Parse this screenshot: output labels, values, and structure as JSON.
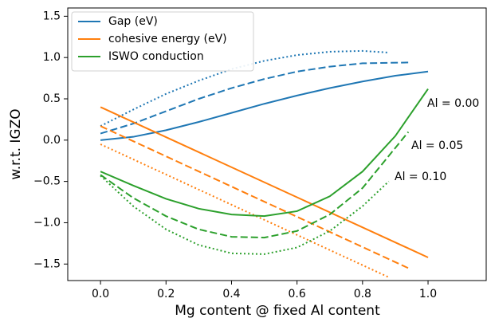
{
  "chart_data": {
    "type": "line",
    "xlabel": "Mg content @ fixed Al content",
    "ylabel": "w.r.t. IGZO",
    "xlim": [
      -0.1,
      1.18
    ],
    "ylim": [
      -1.7,
      1.6
    ],
    "xticks": [
      {
        "value": 0,
        "label": "0.0"
      },
      {
        "value": 0.2,
        "label": "0.2"
      },
      {
        "value": 0.4,
        "label": "0.4"
      },
      {
        "value": 0.6,
        "label": "0.6"
      },
      {
        "value": 0.8,
        "label": "0.8"
      },
      {
        "value": 1.0,
        "label": "1.0"
      }
    ],
    "yticks": [
      {
        "value": -1.5,
        "label": "−1.5"
      },
      {
        "value": -1.0,
        "label": "−1.0"
      },
      {
        "value": -0.5,
        "label": "−0.5"
      },
      {
        "value": 0,
        "label": "0.0"
      },
      {
        "value": 0.5,
        "label": "0.5"
      },
      {
        "value": 1.0,
        "label": "1.0"
      },
      {
        "value": 1.5,
        "label": "1.5"
      }
    ],
    "legend": "upper left",
    "annotations": [
      "Al = 0.00",
      "Al = 0.05",
      "Al = 0.10"
    ],
    "series": [
      {
        "name": "Gap (eV)",
        "color": "#1f77b4",
        "dash": "solid",
        "x": [
          0,
          0.1,
          0.2,
          0.3,
          0.4,
          0.5,
          0.6,
          0.7,
          0.8,
          0.9,
          1.0
        ],
        "values": [
          0.0,
          0.04,
          0.12,
          0.22,
          0.33,
          0.44,
          0.54,
          0.63,
          0.71,
          0.78,
          0.83
        ]
      },
      {
        "color": "#1f77b4",
        "dash": "dashed",
        "x": [
          0,
          0.1,
          0.2,
          0.3,
          0.4,
          0.5,
          0.6,
          0.7,
          0.8,
          0.94
        ],
        "values": [
          0.08,
          0.2,
          0.35,
          0.5,
          0.63,
          0.74,
          0.83,
          0.89,
          0.93,
          0.94
        ]
      },
      {
        "color": "#1f77b4",
        "dash": "dotted",
        "x": [
          0,
          0.1,
          0.2,
          0.3,
          0.4,
          0.5,
          0.6,
          0.7,
          0.8,
          0.88
        ],
        "values": [
          0.17,
          0.37,
          0.56,
          0.72,
          0.86,
          0.96,
          1.03,
          1.07,
          1.08,
          1.06
        ]
      },
      {
        "name": "cohesive energy (eV)",
        "color": "#ff7f0e",
        "dash": "solid",
        "x": [
          0,
          1.0
        ],
        "values": [
          0.4,
          -1.42
        ]
      },
      {
        "color": "#ff7f0e",
        "dash": "dashed",
        "x": [
          0,
          0.94
        ],
        "values": [
          0.17,
          -1.55
        ]
      },
      {
        "color": "#ff7f0e",
        "dash": "dotted",
        "x": [
          0,
          0.88
        ],
        "values": [
          -0.05,
          -1.66
        ]
      },
      {
        "name": "ISWO conduction",
        "color": "#2ca02c",
        "dash": "solid",
        "x": [
          0,
          0.1,
          0.2,
          0.3,
          0.4,
          0.5,
          0.6,
          0.7,
          0.8,
          0.9,
          1.0
        ],
        "values": [
          -0.38,
          -0.55,
          -0.71,
          -0.83,
          -0.9,
          -0.92,
          -0.86,
          -0.68,
          -0.38,
          0.05,
          0.62
        ]
      },
      {
        "color": "#2ca02c",
        "dash": "dashed",
        "x": [
          0,
          0.1,
          0.2,
          0.3,
          0.4,
          0.5,
          0.6,
          0.7,
          0.8,
          0.94
        ],
        "values": [
          -0.42,
          -0.7,
          -0.92,
          -1.08,
          -1.17,
          -1.18,
          -1.1,
          -0.9,
          -0.58,
          0.1
        ]
      },
      {
        "color": "#2ca02c",
        "dash": "dotted",
        "x": [
          0,
          0.1,
          0.2,
          0.3,
          0.4,
          0.5,
          0.6,
          0.7,
          0.8,
          0.88
        ],
        "values": [
          -0.43,
          -0.8,
          -1.08,
          -1.27,
          -1.37,
          -1.38,
          -1.3,
          -1.1,
          -0.8,
          -0.5
        ]
      }
    ]
  }
}
